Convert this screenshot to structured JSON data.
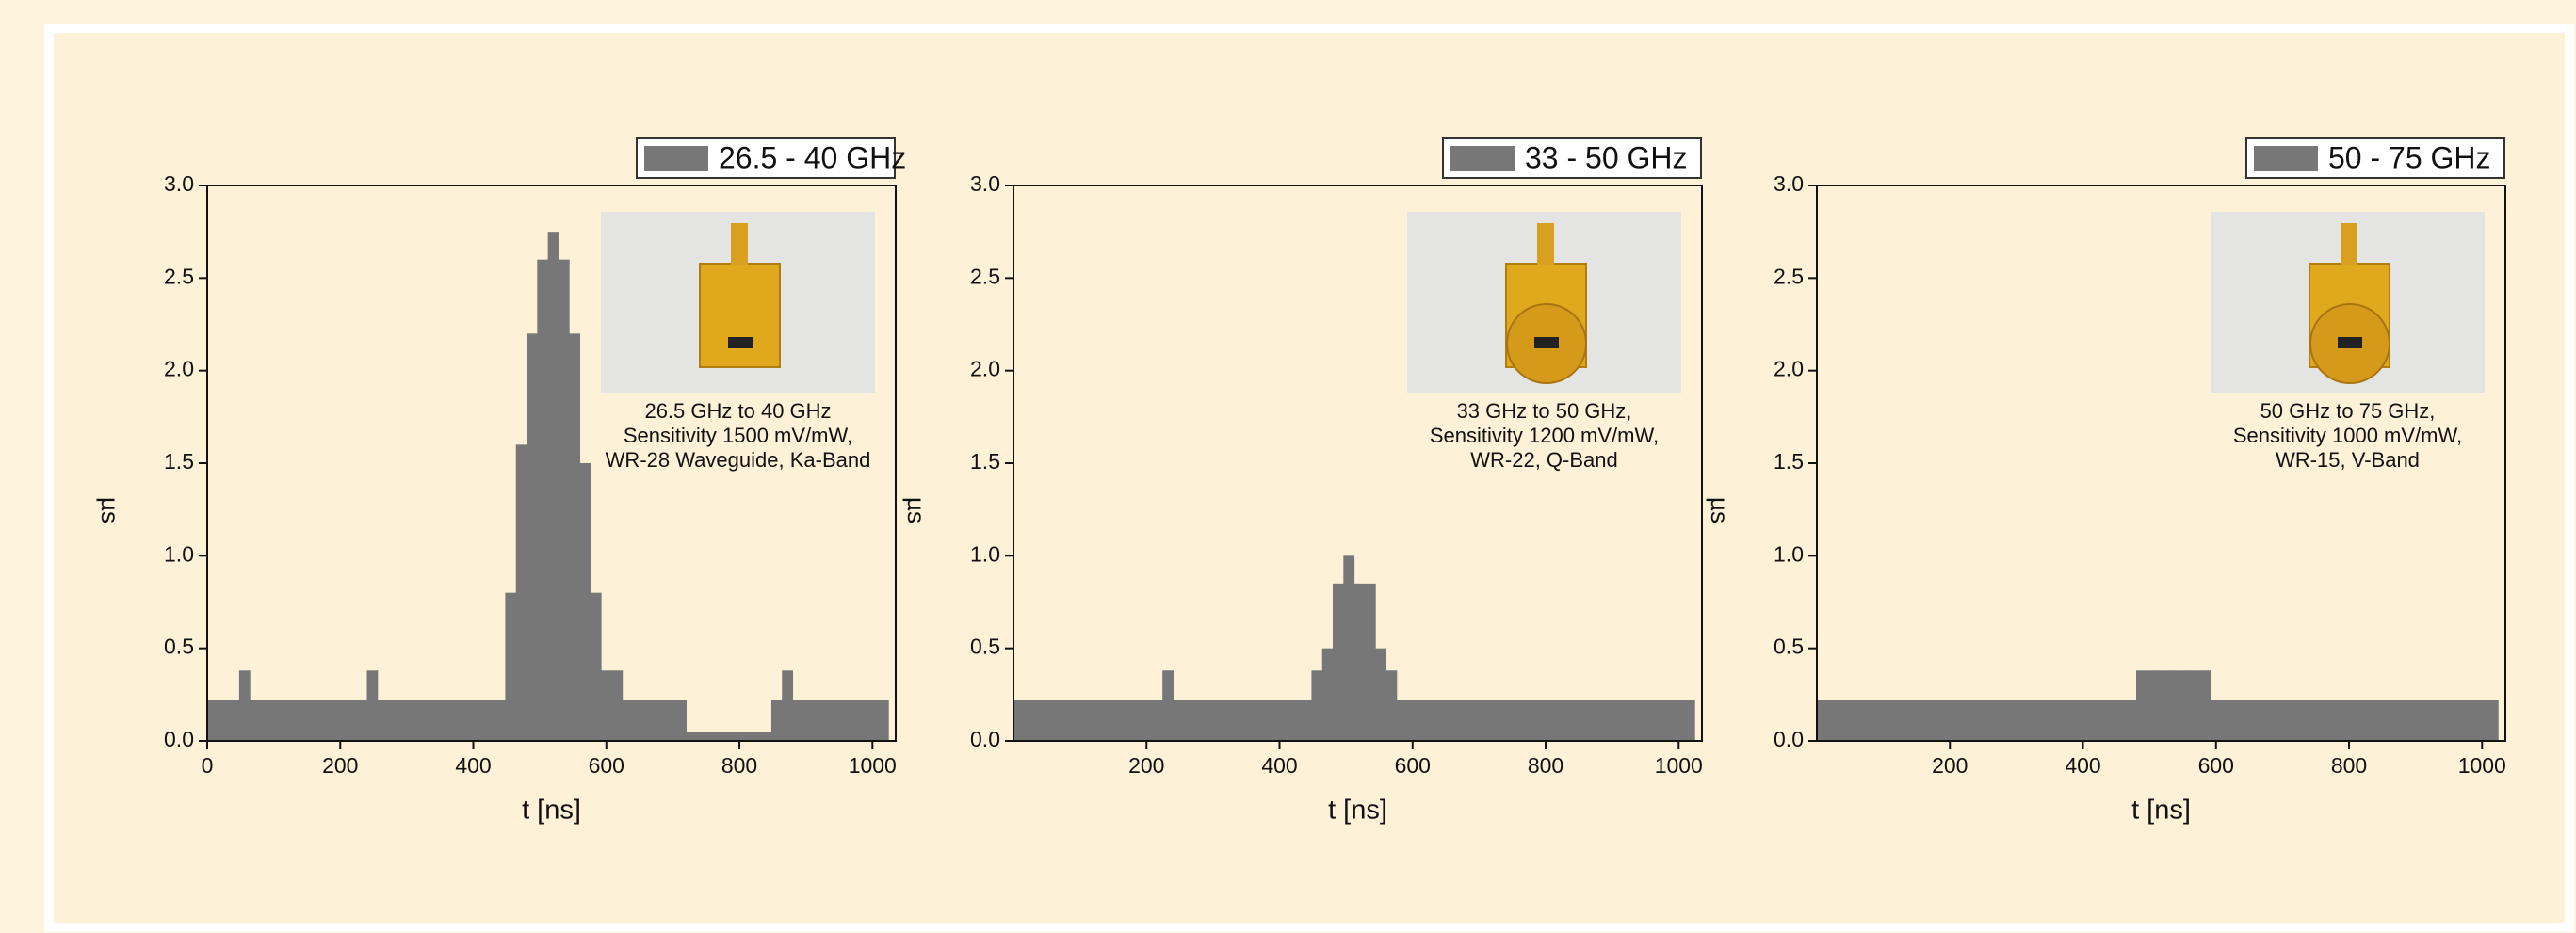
{
  "chart_data": [
    {
      "type": "histogram",
      "legend": "26.5 - 40 GHz",
      "color": "#777777",
      "x_label": "t [ns]",
      "y_label": "µs",
      "caption": [
        "26.5 GHz to 40 GHz",
        "Sensitivity 1500 mV/mW,",
        "WR-28 Waveguide, Ka-Band"
      ],
      "bins": [
        0,
        16,
        32,
        48,
        64,
        80,
        96,
        112,
        128,
        144,
        160,
        176,
        192,
        208,
        224,
        240,
        256,
        272,
        288,
        304,
        320,
        336,
        352,
        368,
        384,
        400,
        416,
        432,
        448,
        464,
        480,
        496,
        512,
        528,
        544,
        560,
        576,
        592,
        608,
        624,
        640,
        656,
        672,
        688,
        704,
        720,
        736,
        752,
        768,
        784,
        800,
        816,
        832,
        848,
        864,
        880,
        896,
        912,
        928,
        944,
        960,
        976,
        992,
        1008,
        1024
      ],
      "values": [
        0.22,
        0.22,
        0.22,
        0.38,
        0.22,
        0.22,
        0.22,
        0.22,
        0.22,
        0.22,
        0.22,
        0.22,
        0.22,
        0.22,
        0.22,
        0.38,
        0.22,
        0.22,
        0.22,
        0.22,
        0.22,
        0.22,
        0.22,
        0.22,
        0.22,
        0.22,
        0.22,
        0.22,
        0.8,
        1.6,
        2.2,
        2.6,
        2.75,
        2.6,
        2.2,
        1.5,
        0.8,
        0.38,
        0.38,
        0.22,
        0.22,
        0.22,
        0.22,
        0.22,
        0.22,
        0.05,
        0.05,
        0.05,
        0.05,
        0.05,
        0.05,
        0.05,
        0.05,
        0.22,
        0.38,
        0.22,
        0.22,
        0.22,
        0.22,
        0.22,
        0.22,
        0.22,
        0.22,
        0.22
      ],
      "xlim": [
        0,
        1035
      ],
      "xticks": [
        0,
        200,
        400,
        600,
        800,
        1000
      ],
      "ylim": [
        0,
        3
      ],
      "yticks": [
        {
          "value": 0,
          "label": "0.0"
        },
        0.5,
        {
          "value": 1,
          "label": "1.0"
        },
        1.5,
        {
          "value": 2,
          "label": "2.0"
        },
        2.5,
        {
          "value": 3,
          "label": "3.0"
        }
      ]
    },
    {
      "type": "histogram",
      "legend": "33 - 50 GHz",
      "color": "#777777",
      "x_label": "t [ns]",
      "y_label": "µs",
      "caption": [
        "33 GHz to 50 GHz,",
        "Sensitivity 1200 mV/mW,",
        "WR-22, Q-Band"
      ],
      "bins": [
        0,
        16,
        32,
        48,
        64,
        80,
        96,
        112,
        128,
        144,
        160,
        176,
        192,
        208,
        224,
        240,
        256,
        272,
        288,
        304,
        320,
        336,
        352,
        368,
        384,
        400,
        416,
        432,
        448,
        464,
        480,
        496,
        512,
        528,
        544,
        560,
        576,
        592,
        608,
        624,
        640,
        656,
        672,
        688,
        704,
        720,
        736,
        752,
        768,
        784,
        800,
        816,
        832,
        848,
        864,
        880,
        896,
        912,
        928,
        944,
        960,
        976,
        992,
        1008,
        1024
      ],
      "values": [
        0.22,
        0.22,
        0.22,
        0.22,
        0.22,
        0.22,
        0.22,
        0.22,
        0.22,
        0.22,
        0.22,
        0.22,
        0.22,
        0.22,
        0.38,
        0.22,
        0.22,
        0.22,
        0.22,
        0.22,
        0.22,
        0.22,
        0.22,
        0.22,
        0.22,
        0.22,
        0.22,
        0.22,
        0.38,
        0.5,
        0.85,
        1.0,
        0.85,
        0.85,
        0.5,
        0.38,
        0.22,
        0.22,
        0.22,
        0.22,
        0.22,
        0.22,
        0.22,
        0.22,
        0.22,
        0.22,
        0.22,
        0.22,
        0.22,
        0.22,
        0.22,
        0.22,
        0.22,
        0.22,
        0.22,
        0.22,
        0.22,
        0.22,
        0.22,
        0.22,
        0.22,
        0.22,
        0.22,
        0.22
      ],
      "xlim": [
        0,
        1035
      ],
      "xticks": [
        200,
        400,
        600,
        800,
        1000
      ],
      "ylim": [
        0,
        3
      ],
      "yticks": [
        {
          "value": 0,
          "label": "0.0"
        },
        0.5,
        {
          "value": 1,
          "label": "1.0"
        },
        1.5,
        {
          "value": 2,
          "label": "2.0"
        },
        2.5,
        {
          "value": 3,
          "label": "3.0"
        }
      ]
    },
    {
      "type": "histogram",
      "legend": "50 - 75 GHz",
      "color": "#777777",
      "x_label": "t [ns]",
      "y_label": "µs",
      "caption": [
        "50 GHz to 75 GHz,",
        "Sensitivity 1000 mV/mW,",
        "WR-15, V-Band"
      ],
      "bins": [
        0,
        16,
        32,
        48,
        64,
        80,
        96,
        112,
        128,
        144,
        160,
        176,
        192,
        208,
        224,
        240,
        256,
        272,
        288,
        304,
        320,
        336,
        352,
        368,
        384,
        400,
        416,
        432,
        448,
        464,
        480,
        496,
        512,
        528,
        544,
        560,
        576,
        592,
        608,
        624,
        640,
        656,
        672,
        688,
        704,
        720,
        736,
        752,
        768,
        784,
        800,
        816,
        832,
        848,
        864,
        880,
        896,
        912,
        928,
        944,
        960,
        976,
        992,
        1008,
        1024
      ],
      "values": [
        0.22,
        0.22,
        0.22,
        0.22,
        0.22,
        0.22,
        0.22,
        0.22,
        0.22,
        0.22,
        0.22,
        0.22,
        0.22,
        0.22,
        0.22,
        0.22,
        0.22,
        0.22,
        0.22,
        0.22,
        0.22,
        0.22,
        0.22,
        0.22,
        0.22,
        0.22,
        0.22,
        0.22,
        0.22,
        0.22,
        0.38,
        0.38,
        0.38,
        0.38,
        0.38,
        0.38,
        0.38,
        0.22,
        0.22,
        0.22,
        0.22,
        0.22,
        0.22,
        0.22,
        0.22,
        0.22,
        0.22,
        0.22,
        0.22,
        0.22,
        0.22,
        0.22,
        0.22,
        0.22,
        0.22,
        0.22,
        0.22,
        0.22,
        0.22,
        0.22,
        0.22,
        0.22,
        0.22,
        0.22
      ],
      "xlim": [
        0,
        1035
      ],
      "xticks": [
        200,
        400,
        600,
        800,
        1000
      ],
      "ylim": [
        0,
        3
      ],
      "yticks": [
        {
          "value": 0,
          "label": "0.0"
        },
        0.5,
        {
          "value": 1,
          "label": "1.0"
        },
        1.5,
        {
          "value": 2,
          "label": "2.0"
        },
        2.5,
        {
          "value": 3,
          "label": "3.0"
        }
      ]
    }
  ]
}
